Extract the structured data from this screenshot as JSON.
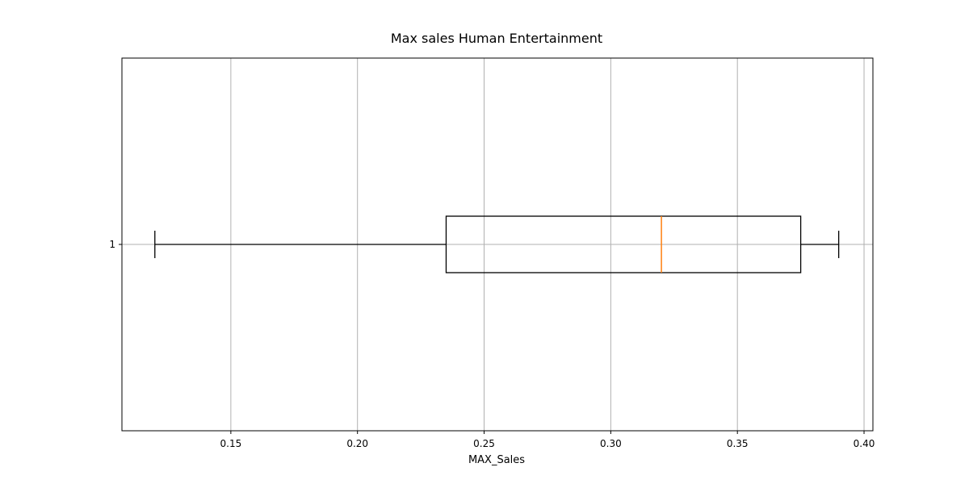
{
  "chart_data": {
    "type": "box",
    "orientation": "horizontal",
    "title": "Max sales Human Entertainment",
    "xlabel": "MAX_Sales",
    "ylabel": "",
    "xlim": [
      0.107,
      0.4035
    ],
    "xticks": [
      0.15,
      0.2,
      0.25,
      0.3,
      0.35,
      0.4
    ],
    "xtick_labels": [
      "0.15",
      "0.20",
      "0.25",
      "0.30",
      "0.35",
      "0.40"
    ],
    "categories": [
      "1"
    ],
    "grid": true,
    "series": [
      {
        "whisker_low": 0.12,
        "q1": 0.235,
        "median": 0.32,
        "q3": 0.375,
        "whisker_high": 0.39
      }
    ],
    "colors": {
      "box": "#000000",
      "median": "#ff7f0e",
      "grid": "#b0b0b0"
    }
  }
}
